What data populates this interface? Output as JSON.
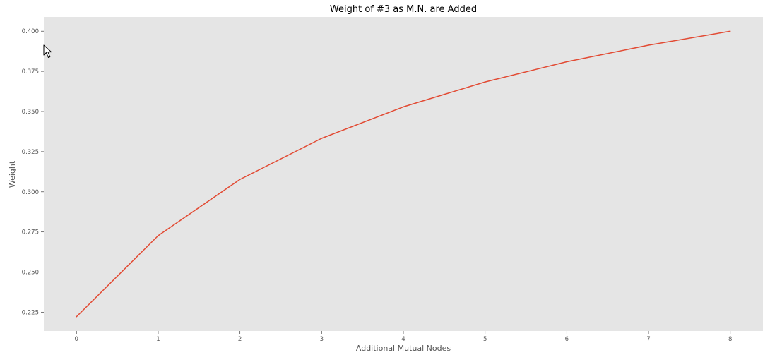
{
  "chart_data": {
    "type": "line",
    "title": "Weight of #3 as M.N. are Added",
    "xlabel": "Additional Mutual Nodes",
    "ylabel": "Weight",
    "x": [
      0,
      1,
      2,
      3,
      4,
      5,
      6,
      7,
      8
    ],
    "series": [
      {
        "values": [
          0.2222,
          0.2727,
          0.3077,
          0.3333,
          0.3529,
          0.3684,
          0.381,
          0.3913,
          0.4
        ],
        "color": "#E24A33"
      }
    ],
    "xticks": [
      "0",
      "1",
      "2",
      "3",
      "4",
      "5",
      "6",
      "7",
      "8"
    ],
    "yticks": [
      "0.225",
      "0.250",
      "0.275",
      "0.300",
      "0.325",
      "0.350",
      "0.375",
      "0.400"
    ],
    "xlim": [
      -0.4,
      8.4
    ],
    "ylim": [
      0.2133,
      0.4089
    ],
    "grid": false,
    "background": "#E5E5E5"
  },
  "cursor": {
    "icon": "mouse-pointer-icon"
  }
}
